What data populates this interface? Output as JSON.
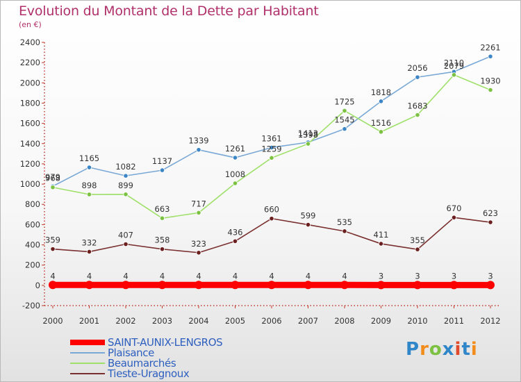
{
  "title": "Evolution du Montant de la Dette par Habitant",
  "subtitle": "(en €)",
  "logo": {
    "text": "Proxiti",
    "letters": [
      "P",
      "r",
      "o",
      "x",
      "i",
      "t",
      "i"
    ]
  },
  "chart_data": {
    "type": "line",
    "title": "Evolution du Montant de la Dette par Habitant",
    "ylabel": "(en €)",
    "xlabel": "",
    "categories": [
      "2000",
      "2001",
      "2002",
      "2003",
      "2004",
      "2005",
      "2006",
      "2007",
      "2008",
      "2009",
      "2010",
      "2011",
      "2012"
    ],
    "ylim": [
      -200,
      2400
    ],
    "yticks": [
      -200,
      0,
      200,
      400,
      600,
      800,
      1000,
      1200,
      1400,
      1600,
      1800,
      2000,
      2200,
      2400
    ],
    "grid": false,
    "legend_position": "bottom-left",
    "series": [
      {
        "name": "SAINT-AUNIX-LENGROS",
        "color": "#ff0000",
        "marker": "#ff0000",
        "thick": true,
        "values": [
          4,
          4,
          4,
          4,
          4,
          4,
          4,
          4,
          4,
          3,
          3,
          3,
          3
        ]
      },
      {
        "name": "Plaisance",
        "color": "#79a8d6",
        "marker": "#3d86c6",
        "values": [
          979,
          1165,
          1082,
          1137,
          1339,
          1261,
          1361,
          1413,
          1545,
          1818,
          2056,
          2110,
          2261
        ]
      },
      {
        "name": "Beaumarchés",
        "color": "#9fe06a",
        "marker": "#7cc142",
        "values": [
          968,
          898,
          899,
          663,
          717,
          1008,
          1259,
          1398,
          1725,
          1516,
          1683,
          2079,
          1930
        ]
      },
      {
        "name": "Tieste-Uragnoux",
        "color": "#7a2f2f",
        "marker": "#6b1f1f",
        "values": [
          359,
          332,
          407,
          358,
          323,
          436,
          660,
          599,
          535,
          411,
          355,
          670,
          623
        ]
      }
    ]
  }
}
